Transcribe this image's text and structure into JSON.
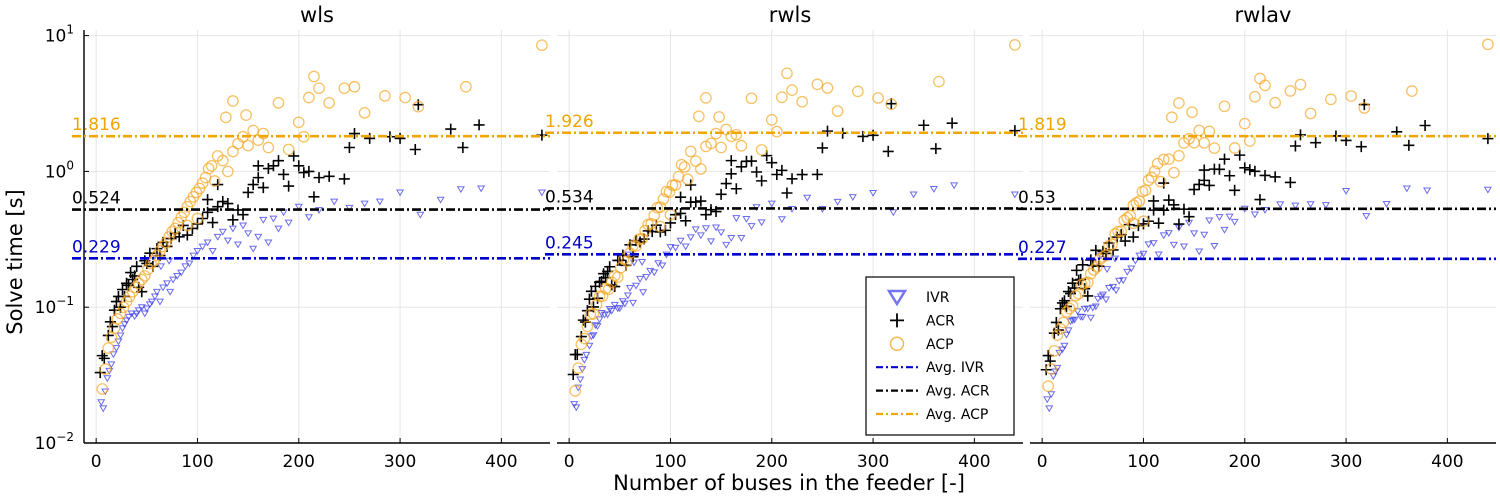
{
  "chart_data": {
    "type": "scatter",
    "xlabel": "Number of buses in the feeder [-]",
    "ylabel": "Solve time [s]",
    "xlim": [
      -12,
      448
    ],
    "ylim": [
      0.01,
      11
    ],
    "yscale": "log",
    "x_ticks": [
      0,
      100,
      200,
      300,
      400
    ],
    "x_tick_labels": [
      "0",
      "100",
      "200",
      "300",
      "400"
    ],
    "y_ticks": [
      0.01,
      0.1,
      1,
      10
    ],
    "y_tick_labels": [
      "10",
      "10",
      "10",
      "10"
    ],
    "y_tick_exponents": [
      "−2",
      "−1",
      "0",
      "1"
    ],
    "grid": true,
    "legend_position": "lower-right of middle panel",
    "colors": {
      "IVR": "#3a3ae8",
      "ACR": "#000000",
      "ACP": "#f5a623"
    },
    "legend": [
      {
        "label": "IVR",
        "marker": "triangle-down",
        "color": "#3a3ae8"
      },
      {
        "label": "ACR",
        "marker": "plus",
        "color": "#000000"
      },
      {
        "label": "ACP",
        "marker": "circle",
        "color": "#f5a623"
      },
      {
        "label": "Avg. IVR",
        "marker": "dashdot",
        "color": "#0000cc"
      },
      {
        "label": "Avg. ACR",
        "marker": "dashdot",
        "color": "#000000"
      },
      {
        "label": "Avg. ACP",
        "marker": "dashdot",
        "color": "#f0a500"
      }
    ],
    "panels": [
      {
        "title": "wls",
        "averages": {
          "IVR": 0.229,
          "ACR": 0.524,
          "ACP": 1.816
        },
        "avg_labels": {
          "IVR": "0.229",
          "ACR": "0.524",
          "ACP": "1.816"
        }
      },
      {
        "title": "rwls",
        "averages": {
          "IVR": 0.245,
          "ACR": 0.534,
          "ACP": 1.926
        },
        "avg_labels": {
          "IVR": "0.245",
          "ACR": "0.534",
          "ACP": "1.926"
        }
      },
      {
        "title": "rwlav",
        "averages": {
          "IVR": 0.227,
          "ACR": 0.53,
          "ACP": 1.819
        },
        "avg_labels": {
          "IVR": "0.227",
          "ACR": "0.53",
          "ACP": "1.819"
        }
      }
    ],
    "series": [
      {
        "name": "IVR",
        "points": [
          [
            5,
            0.02
          ],
          [
            7,
            0.018
          ],
          [
            9,
            0.024
          ],
          [
            11,
            0.03
          ],
          [
            13,
            0.034
          ],
          [
            15,
            0.038
          ],
          [
            17,
            0.045
          ],
          [
            20,
            0.05
          ],
          [
            22,
            0.056
          ],
          [
            24,
            0.062
          ],
          [
            26,
            0.07
          ],
          [
            28,
            0.075
          ],
          [
            30,
            0.08
          ],
          [
            32,
            0.085
          ],
          [
            35,
            0.09
          ],
          [
            38,
            0.086
          ],
          [
            40,
            0.09
          ],
          [
            42,
            0.095
          ],
          [
            45,
            0.1
          ],
          [
            48,
            0.09
          ],
          [
            50,
            0.098
          ],
          [
            53,
            0.105
          ],
          [
            55,
            0.11
          ],
          [
            58,
            0.12
          ],
          [
            60,
            0.13
          ],
          [
            63,
            0.11
          ],
          [
            66,
            0.14
          ],
          [
            70,
            0.15
          ],
          [
            73,
            0.13
          ],
          [
            76,
            0.16
          ],
          [
            80,
            0.17
          ],
          [
            84,
            0.18
          ],
          [
            88,
            0.2
          ],
          [
            92,
            0.21
          ],
          [
            96,
            0.24
          ],
          [
            100,
            0.26
          ],
          [
            105,
            0.28
          ],
          [
            110,
            0.3
          ],
          [
            115,
            0.26
          ],
          [
            120,
            0.33
          ],
          [
            125,
            0.36
          ],
          [
            130,
            0.31
          ],
          [
            135,
            0.38
          ],
          [
            140,
            0.29
          ],
          [
            145,
            0.4
          ],
          [
            150,
            0.35
          ],
          [
            155,
            0.27
          ],
          [
            160,
            0.33
          ],
          [
            165,
            0.44
          ],
          [
            170,
            0.3
          ],
          [
            175,
            0.45
          ],
          [
            180,
            0.38
          ],
          [
            185,
            0.5
          ],
          [
            190,
            0.42
          ],
          [
            200,
            0.55
          ],
          [
            210,
            0.46
          ],
          [
            220,
            0.52
          ],
          [
            235,
            0.6
          ],
          [
            250,
            0.54
          ],
          [
            265,
            0.58
          ],
          [
            280,
            0.6
          ],
          [
            300,
            0.7
          ],
          [
            320,
            0.48
          ],
          [
            340,
            0.62
          ],
          [
            360,
            0.74
          ],
          [
            380,
            0.75
          ],
          [
            440,
            0.7
          ],
          [
            58,
            0.24
          ],
          [
            64,
            0.2
          ],
          [
            72,
            0.22
          ]
        ]
      },
      {
        "name": "ACR",
        "points": [
          [
            4,
            0.033
          ],
          [
            6,
            0.044
          ],
          [
            8,
            0.042
          ],
          [
            12,
            0.062
          ],
          [
            14,
            0.078
          ],
          [
            16,
            0.072
          ],
          [
            18,
            0.095
          ],
          [
            20,
            0.11
          ],
          [
            22,
            0.12
          ],
          [
            24,
            0.1
          ],
          [
            26,
            0.135
          ],
          [
            28,
            0.12
          ],
          [
            30,
            0.15
          ],
          [
            32,
            0.145
          ],
          [
            34,
            0.18
          ],
          [
            36,
            0.16
          ],
          [
            38,
            0.17
          ],
          [
            40,
            0.2
          ],
          [
            42,
            0.14
          ],
          [
            45,
            0.13
          ],
          [
            48,
            0.22
          ],
          [
            50,
            0.21
          ],
          [
            53,
            0.25
          ],
          [
            56,
            0.2
          ],
          [
            60,
            0.27
          ],
          [
            63,
            0.24
          ],
          [
            66,
            0.3
          ],
          [
            70,
            0.28
          ],
          [
            74,
            0.32
          ],
          [
            78,
            0.35
          ],
          [
            82,
            0.33
          ],
          [
            86,
            0.4
          ],
          [
            90,
            0.34
          ],
          [
            95,
            0.38
          ],
          [
            100,
            0.41
          ],
          [
            105,
            0.45
          ],
          [
            110,
            0.5
          ],
          [
            115,
            0.42
          ],
          [
            120,
            0.55
          ],
          [
            125,
            0.6
          ],
          [
            130,
            0.58
          ],
          [
            135,
            0.44
          ],
          [
            140,
            0.52
          ],
          [
            145,
            0.48
          ],
          [
            150,
            0.7
          ],
          [
            155,
            0.8
          ],
          [
            160,
            0.9
          ],
          [
            165,
            0.76
          ],
          [
            170,
            1.05
          ],
          [
            175,
            1.1
          ],
          [
            180,
            1.2
          ],
          [
            185,
            0.95
          ],
          [
            190,
            0.78
          ],
          [
            195,
            1.3
          ],
          [
            200,
            1.1
          ],
          [
            205,
            0.98
          ],
          [
            210,
            1.0
          ],
          [
            215,
            0.65
          ],
          [
            220,
            0.9
          ],
          [
            230,
            0.92
          ],
          [
            245,
            0.88
          ],
          [
            250,
            1.5
          ],
          [
            255,
            1.9
          ],
          [
            270,
            1.75
          ],
          [
            290,
            1.8
          ],
          [
            300,
            1.75
          ],
          [
            315,
            1.45
          ],
          [
            318,
            3.1
          ],
          [
            350,
            2.05
          ],
          [
            362,
            1.5
          ],
          [
            378,
            2.2
          ],
          [
            440,
            1.85
          ],
          [
            120,
            0.8
          ],
          [
            110,
            0.62
          ],
          [
            160,
            1.1
          ]
        ]
      },
      {
        "name": "ACP",
        "points": [
          [
            6,
            0.025
          ],
          [
            9,
            0.035
          ],
          [
            12,
            0.05
          ],
          [
            15,
            0.06
          ],
          [
            18,
            0.07
          ],
          [
            21,
            0.082
          ],
          [
            24,
            0.09
          ],
          [
            27,
            0.1
          ],
          [
            30,
            0.11
          ],
          [
            33,
            0.12
          ],
          [
            36,
            0.13
          ],
          [
            39,
            0.14
          ],
          [
            42,
            0.15
          ],
          [
            45,
            0.16
          ],
          [
            48,
            0.17
          ],
          [
            51,
            0.19
          ],
          [
            54,
            0.21
          ],
          [
            57,
            0.22
          ],
          [
            60,
            0.24
          ],
          [
            63,
            0.26
          ],
          [
            66,
            0.28
          ],
          [
            69,
            0.3
          ],
          [
            72,
            0.33
          ],
          [
            75,
            0.36
          ],
          [
            78,
            0.38
          ],
          [
            81,
            0.42
          ],
          [
            84,
            0.46
          ],
          [
            87,
            0.5
          ],
          [
            90,
            0.55
          ],
          [
            93,
            0.6
          ],
          [
            96,
            0.65
          ],
          [
            99,
            0.7
          ],
          [
            102,
            0.75
          ],
          [
            105,
            0.82
          ],
          [
            108,
            0.9
          ],
          [
            111,
            1.05
          ],
          [
            114,
            1.1
          ],
          [
            117,
            0.85
          ],
          [
            120,
            1.3
          ],
          [
            125,
            1.2
          ],
          [
            130,
            1.0
          ],
          [
            135,
            1.4
          ],
          [
            140,
            1.6
          ],
          [
            145,
            1.8
          ],
          [
            150,
            1.55
          ],
          [
            155,
            2.0
          ],
          [
            160,
            1.7
          ],
          [
            165,
            1.9
          ],
          [
            170,
            1.5
          ],
          [
            180,
            3.2
          ],
          [
            190,
            1.45
          ],
          [
            200,
            2.3
          ],
          [
            205,
            1.8
          ],
          [
            210,
            3.5
          ],
          [
            215,
            5.0
          ],
          [
            220,
            4.1
          ],
          [
            230,
            3.2
          ],
          [
            245,
            4.1
          ],
          [
            255,
            4.2
          ],
          [
            265,
            2.7
          ],
          [
            285,
            3.6
          ],
          [
            305,
            3.5
          ],
          [
            318,
            3.0
          ],
          [
            365,
            4.2
          ],
          [
            440,
            8.5
          ],
          [
            135,
            3.3
          ],
          [
            148,
            2.6
          ],
          [
            128,
            2.5
          ],
          [
            100,
            0.45
          ],
          [
            90,
            0.4
          ]
        ]
      }
    ]
  }
}
